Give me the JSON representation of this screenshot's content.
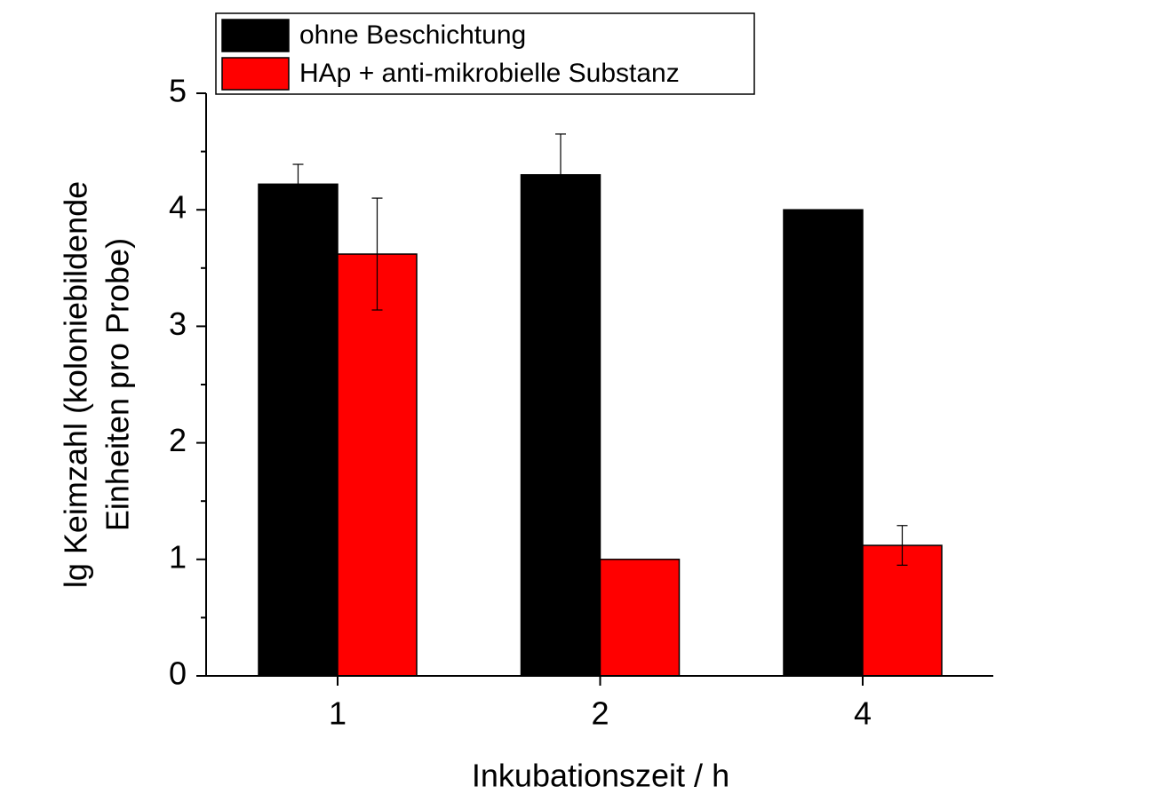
{
  "chart_data": {
    "type": "bar",
    "x_label": "Inkubationszeit / h",
    "y_label": [
      "lg Keimzahl (koloniebildende",
      "Einheiten pro Probe)"
    ],
    "categories": [
      "1",
      "2",
      "4"
    ],
    "series": [
      {
        "name": "ohne Beschichtung",
        "color": "#000000",
        "values": [
          4.22,
          4.3,
          4.0
        ],
        "errors": [
          0.17,
          0.35,
          null
        ]
      },
      {
        "name": "HAp + anti-mikrobielle Substanz",
        "color": "#ff0000",
        "values": [
          3.62,
          1.0,
          1.12
        ],
        "errors": [
          0.48,
          null,
          0.17
        ]
      }
    ],
    "ylim": [
      0,
      5
    ],
    "yticks": [
      0,
      1,
      2,
      3,
      4,
      5
    ],
    "yminorticks": [
      0.5,
      1.5,
      2.5,
      3.5,
      4.5
    ],
    "legend": "top-left",
    "grid": false
  }
}
